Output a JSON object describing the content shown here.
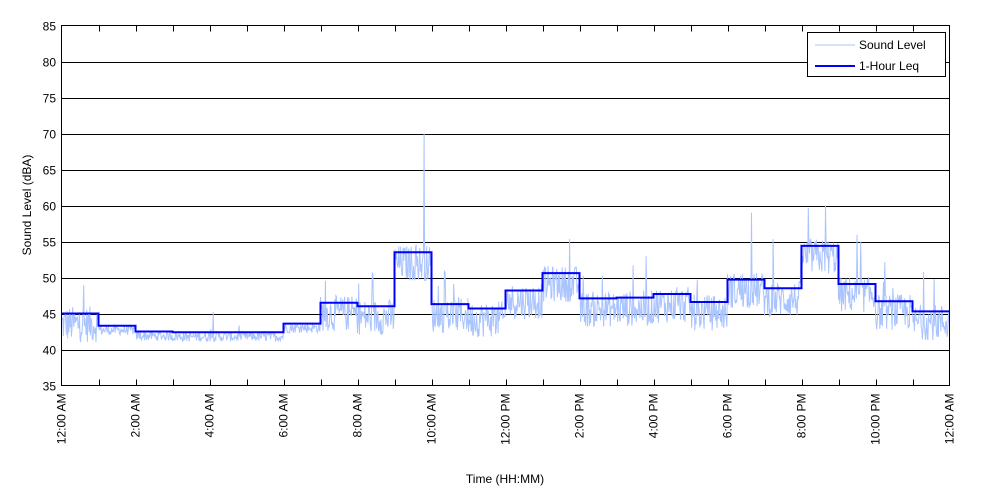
{
  "chart_data": {
    "type": "line",
    "xlabel": "Time (HH:MM)",
    "ylabel": "Sound Level (dBA)",
    "ylim": [
      35,
      85
    ],
    "xlim_hours": [
      0,
      24
    ],
    "yticks": [
      35,
      40,
      45,
      50,
      55,
      60,
      65,
      70,
      75,
      80,
      85
    ],
    "xticks": [
      {
        "hour": 0,
        "label": "12:00 AM"
      },
      {
        "hour": 2,
        "label": "2:00 AM"
      },
      {
        "hour": 4,
        "label": "4:00 AM"
      },
      {
        "hour": 6,
        "label": "6:00 AM"
      },
      {
        "hour": 8,
        "label": "8:00 AM"
      },
      {
        "hour": 10,
        "label": "10:00 AM"
      },
      {
        "hour": 12,
        "label": "12:00 PM"
      },
      {
        "hour": 14,
        "label": "2:00 PM"
      },
      {
        "hour": 16,
        "label": "4:00 PM"
      },
      {
        "hour": 18,
        "label": "6:00 PM"
      },
      {
        "hour": 20,
        "label": "8:00 PM"
      },
      {
        "hour": 22,
        "label": "10:00 PM"
      },
      {
        "hour": 24,
        "label": "12:00 AM"
      }
    ],
    "grid": "horizontal",
    "legend_position": "top-right",
    "series": [
      {
        "name": "Sound Level",
        "color": "#aac4ff",
        "style": "thin-noisy",
        "notable_peaks": [
          {
            "hour": 9.8,
            "value": 70
          },
          {
            "hour": 20.65,
            "value": 60
          },
          {
            "hour": 18.65,
            "value": 59
          }
        ]
      },
      {
        "name": "1-Hour Leq",
        "color": "#0000ff",
        "style": "step",
        "values": [
          45.0,
          43.3,
          42.5,
          42.4,
          42.4,
          42.4,
          43.6,
          46.5,
          46.0,
          53.5,
          46.3,
          45.7,
          48.2,
          50.6,
          47.1,
          47.2,
          47.7,
          46.6,
          49.7,
          48.5,
          54.4,
          49.1,
          46.7,
          45.3
        ]
      }
    ]
  }
}
